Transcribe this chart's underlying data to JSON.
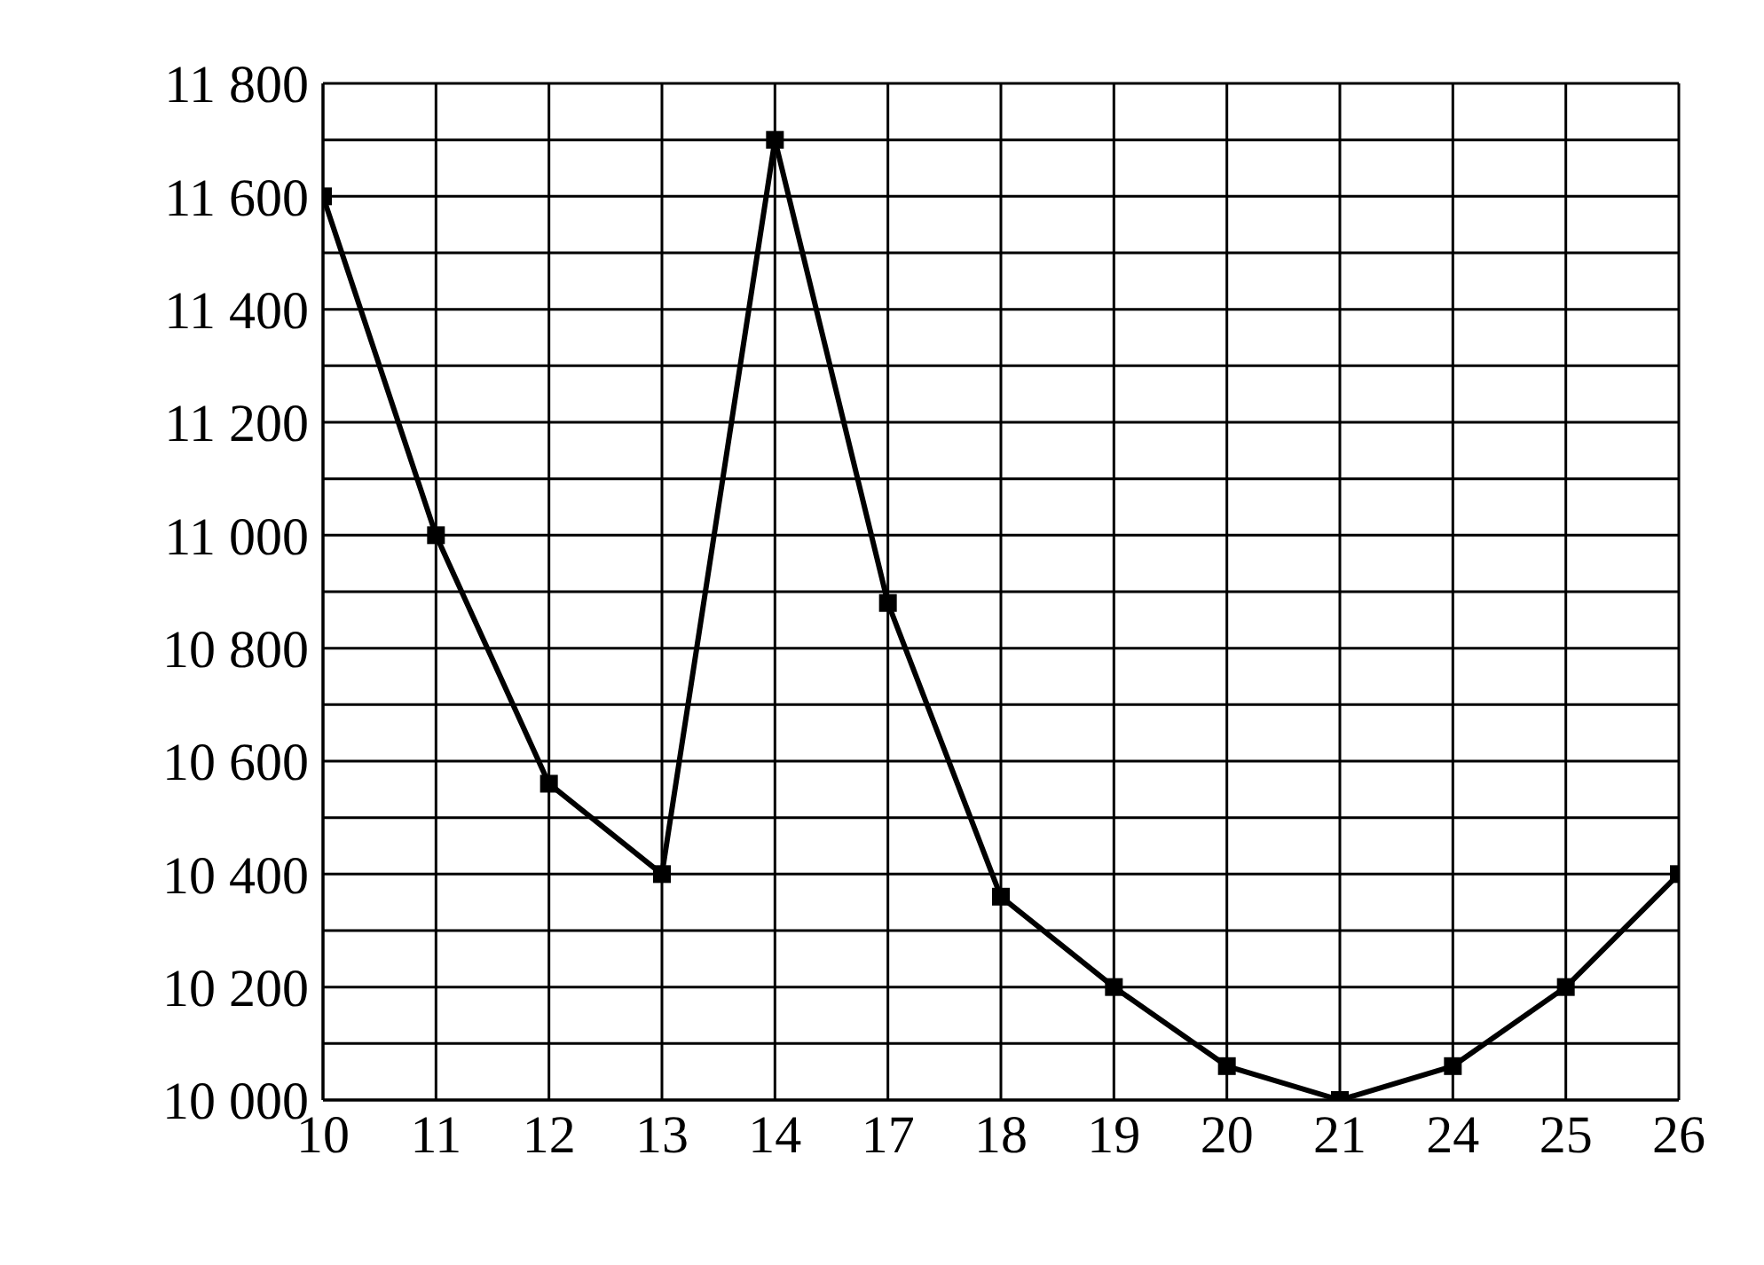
{
  "chart_data": {
    "type": "line",
    "categories": [
      "10",
      "11",
      "12",
      "13",
      "14",
      "17",
      "18",
      "19",
      "20",
      "21",
      "24",
      "25",
      "26"
    ],
    "series": [
      {
        "color": "#000000",
        "values": [
          11600,
          11000,
          10560,
          10400,
          11700,
          10880,
          10360,
          10200,
          10060,
          10000,
          10060,
          10200,
          10400
        ]
      }
    ],
    "ylim": [
      10000,
      11800
    ],
    "yticks": [
      {
        "value": 10000,
        "label": "10 000"
      },
      {
        "value": 10100,
        "label": null
      },
      {
        "value": 10200,
        "label": "10 200"
      },
      {
        "value": 10300,
        "label": null
      },
      {
        "value": 10400,
        "label": "10 400"
      },
      {
        "value": 10500,
        "label": null
      },
      {
        "value": 10600,
        "label": "10 600"
      },
      {
        "value": 10700,
        "label": null
      },
      {
        "value": 10800,
        "label": "10 800"
      },
      {
        "value": 10900,
        "label": null
      },
      {
        "value": 11000,
        "label": "11 000"
      },
      {
        "value": 11100,
        "label": null
      },
      {
        "value": 11200,
        "label": "11 200"
      },
      {
        "value": 11300,
        "label": null
      },
      {
        "value": 11400,
        "label": "11 400"
      },
      {
        "value": 11500,
        "label": null
      },
      {
        "value": 11600,
        "label": "11 600"
      },
      {
        "value": 11700,
        "label": null
      },
      {
        "value": 11800,
        "label": "11 800"
      }
    ],
    "grid": true,
    "marker": "square",
    "line_style": "solid"
  }
}
